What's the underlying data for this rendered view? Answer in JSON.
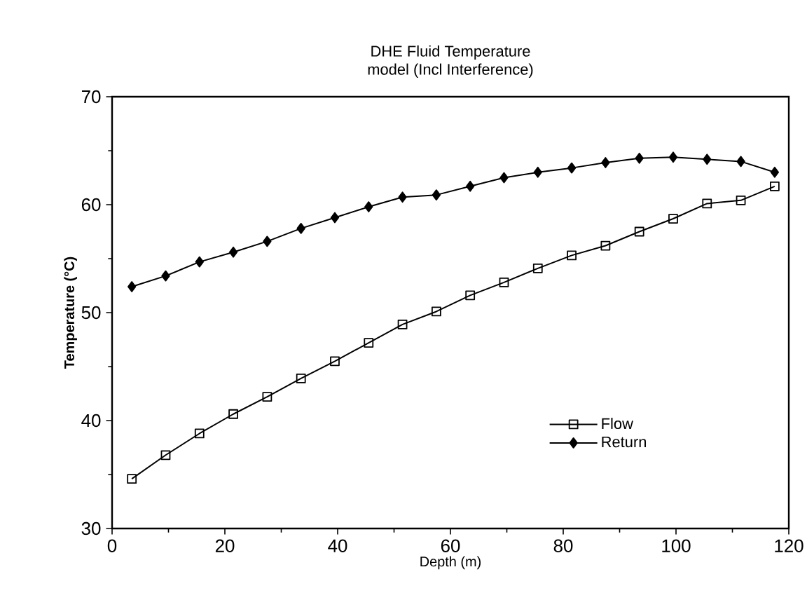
{
  "chart_data": {
    "type": "line",
    "title": "DHE Fluid Temperature",
    "subtitle": "model (Incl Interference)",
    "xlabel": "Depth (m)",
    "ylabel": "Temperature  (°C)",
    "x": [
      3.5,
      9.5,
      15.5,
      21.5,
      27.5,
      33.5,
      39.5,
      45.5,
      51.5,
      57.5,
      63.5,
      69.5,
      75.5,
      81.5,
      87.5,
      93.5,
      99.5,
      105.5,
      111.5,
      117.5
    ],
    "series": [
      {
        "name": "Flow",
        "color": "#000000",
        "marker": "square",
        "values": [
          34.6,
          36.8,
          38.8,
          40.6,
          42.2,
          43.9,
          45.5,
          47.2,
          48.9,
          50.1,
          51.6,
          52.8,
          54.1,
          55.3,
          56.2,
          57.5,
          58.7,
          60.1,
          60.4,
          61.7
        ]
      },
      {
        "name": "Return",
        "color": "#000000",
        "marker": "diamond",
        "values": [
          52.4,
          53.4,
          54.7,
          55.6,
          56.6,
          57.8,
          58.8,
          59.8,
          60.7,
          60.9,
          61.7,
          62.5,
          63.0,
          63.4,
          63.9,
          64.3,
          64.4,
          64.2,
          64.0,
          63.0
        ]
      }
    ],
    "xlim": [
      0,
      120
    ],
    "ylim": [
      30,
      70
    ],
    "xticks": [
      0,
      20,
      40,
      60,
      80,
      100,
      120
    ],
    "yticks": [
      30,
      40,
      50,
      60,
      70
    ],
    "legend": "bottom right",
    "grid": false,
    "line_style": "solid"
  }
}
